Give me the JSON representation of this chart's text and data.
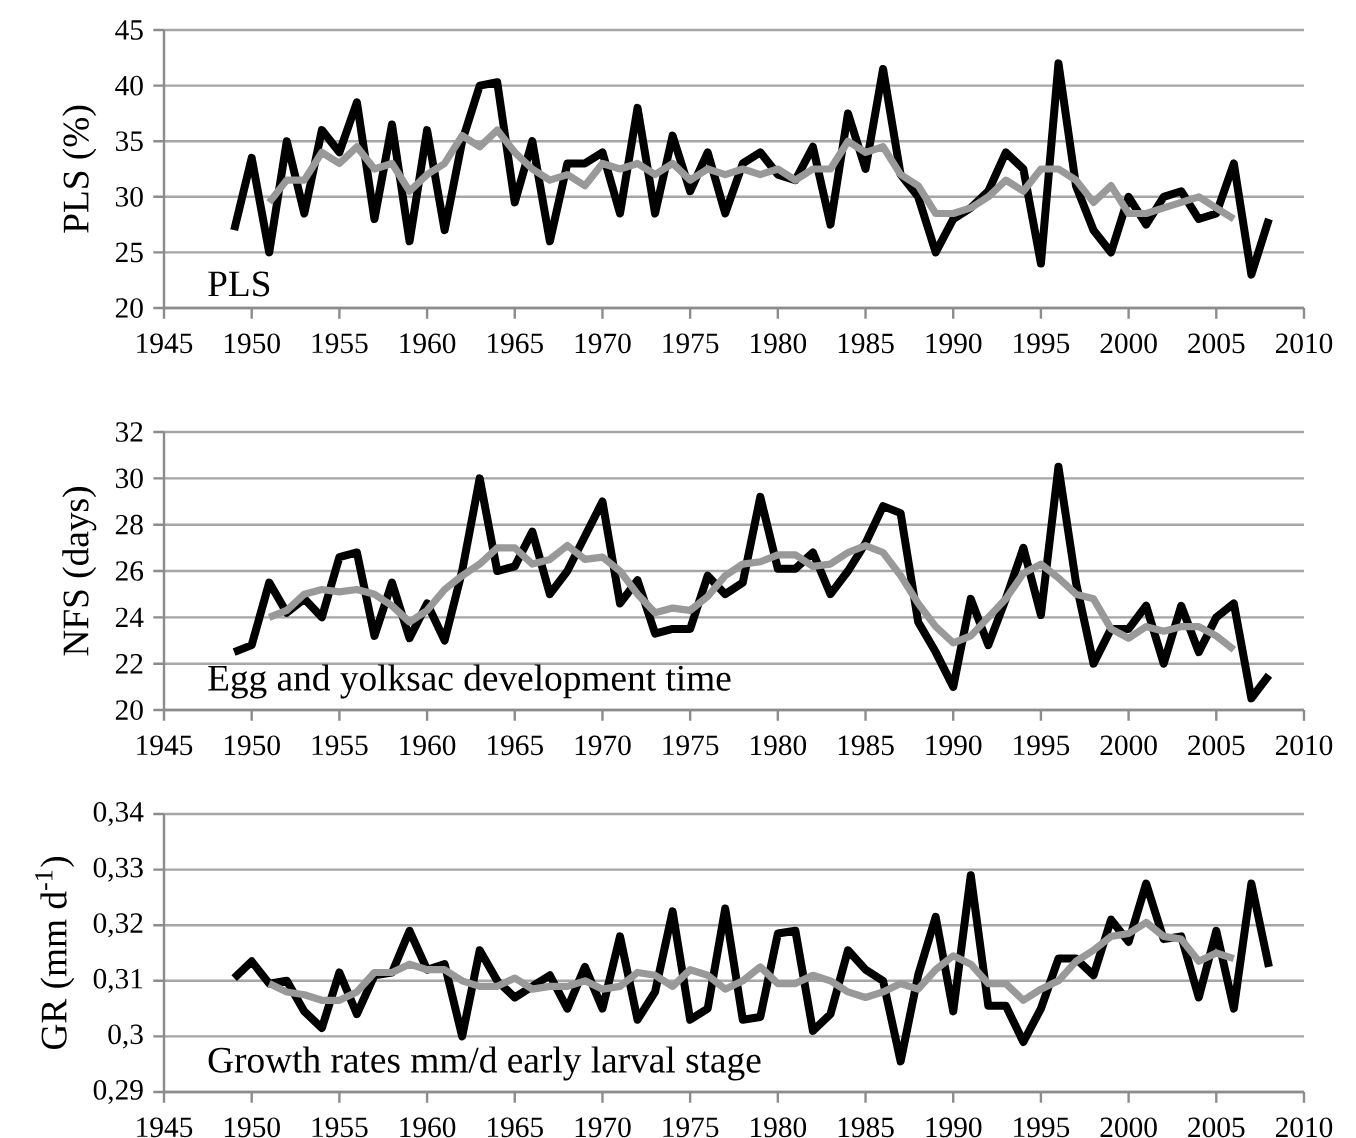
{
  "chart_data": [
    {
      "type": "line",
      "ylabel": "PLS (%)",
      "annotations": [
        "PLS"
      ],
      "grid": "y",
      "line_style": "solid",
      "xlim": [
        1945,
        2010
      ],
      "xticks": [
        1945,
        1950,
        1955,
        1960,
        1965,
        1970,
        1975,
        1980,
        1985,
        1990,
        1995,
        2000,
        2005,
        2010
      ],
      "ylim": [
        20,
        45
      ],
      "yticks": [
        20,
        25,
        30,
        35,
        40,
        45
      ],
      "series": [
        {
          "color": "#000000",
          "x": [
            1949,
            1950,
            1951,
            1952,
            1953,
            1954,
            1955,
            1956,
            1957,
            1958,
            1959,
            1960,
            1961,
            1962,
            1963,
            1964,
            1965,
            1966,
            1967,
            1968,
            1969,
            1970,
            1971,
            1972,
            1973,
            1974,
            1975,
            1976,
            1977,
            1978,
            1979,
            1980,
            1981,
            1982,
            1983,
            1984,
            1985,
            1986,
            1987,
            1988,
            1989,
            1990,
            1991,
            1992,
            1993,
            1994,
            1995,
            1996,
            1997,
            1998,
            1999,
            2000,
            2001,
            2002,
            2003,
            2004,
            2005,
            2006,
            2007,
            2008
          ],
          "values": [
            27,
            33.5,
            25,
            35,
            28.5,
            36,
            34,
            38.5,
            28,
            36.5,
            26,
            36,
            27,
            35,
            40,
            40.3,
            29.5,
            35,
            26,
            33,
            33,
            34,
            28.5,
            38,
            28.5,
            35.5,
            30.5,
            34,
            28.5,
            33,
            34,
            32,
            31.5,
            34.5,
            27.5,
            37.5,
            32.5,
            41.5,
            32,
            30,
            25,
            28,
            29,
            30.5,
            34,
            32.5,
            24,
            42,
            31,
            27,
            25,
            30,
            27.5,
            30,
            30.5,
            28,
            28.5,
            33,
            23,
            28
          ]
        },
        {
          "color": "#999999",
          "x": [
            1951,
            1952,
            1953,
            1954,
            1955,
            1956,
            1957,
            1958,
            1959,
            1960,
            1961,
            1962,
            1963,
            1964,
            1965,
            1966,
            1967,
            1968,
            1969,
            1970,
            1971,
            1972,
            1973,
            1974,
            1975,
            1976,
            1977,
            1978,
            1979,
            1980,
            1981,
            1982,
            1983,
            1984,
            1985,
            1986,
            1987,
            1988,
            1989,
            1990,
            1991,
            1992,
            1993,
            1994,
            1995,
            1996,
            1997,
            1998,
            1999,
            2000,
            2001,
            2002,
            2003,
            2004,
            2005,
            2006
          ],
          "values": [
            29.5,
            31.5,
            31.5,
            34,
            33,
            34.5,
            32.5,
            33,
            30.5,
            32,
            33,
            35.5,
            34.5,
            36,
            34,
            32.5,
            31.5,
            32,
            31,
            33,
            32.5,
            33,
            32,
            33,
            31.5,
            32.5,
            32,
            32.5,
            32,
            32.5,
            31.5,
            32.5,
            32.5,
            35,
            34,
            34.5,
            32,
            31,
            28.5,
            28.5,
            29,
            30,
            31.5,
            30.5,
            32.5,
            32.5,
            31.5,
            29.5,
            31,
            28.5,
            28.5,
            29,
            29.5,
            30,
            29,
            28
          ]
        }
      ]
    },
    {
      "type": "line",
      "ylabel": "NFS (days)",
      "annotations": [
        "Egg and yolksac development time"
      ],
      "grid": "y",
      "line_style": "solid",
      "xlim": [
        1945,
        2010
      ],
      "xticks": [
        1945,
        1950,
        1955,
        1960,
        1965,
        1970,
        1975,
        1980,
        1985,
        1990,
        1995,
        2000,
        2005,
        2010
      ],
      "ylim": [
        20,
        32
      ],
      "yticks": [
        20,
        22,
        24,
        26,
        28,
        30,
        32
      ],
      "series": [
        {
          "color": "#000000",
          "x": [
            1949,
            1950,
            1951,
            1952,
            1953,
            1954,
            1955,
            1956,
            1957,
            1958,
            1959,
            1960,
            1961,
            1962,
            1963,
            1964,
            1965,
            1966,
            1967,
            1968,
            1969,
            1970,
            1971,
            1972,
            1973,
            1974,
            1975,
            1976,
            1977,
            1978,
            1979,
            1980,
            1981,
            1982,
            1983,
            1984,
            1985,
            1986,
            1987,
            1988,
            1989,
            1990,
            1991,
            1992,
            1993,
            1994,
            1995,
            1996,
            1997,
            1998,
            1999,
            2000,
            2001,
            2002,
            2003,
            2004,
            2005,
            2006,
            2007,
            2008
          ],
          "values": [
            22.5,
            22.8,
            25.5,
            24.2,
            24.8,
            24,
            26.6,
            26.8,
            23.2,
            25.5,
            23.1,
            24.6,
            23,
            26,
            30,
            26,
            26.2,
            27.7,
            25,
            26,
            27.5,
            29,
            24.6,
            25.6,
            23.3,
            23.5,
            23.5,
            25.8,
            25,
            25.5,
            29.2,
            26.1,
            26.1,
            26.8,
            25,
            26,
            27.2,
            28.8,
            28.5,
            23.8,
            22.5,
            21,
            24.8,
            22.8,
            24.8,
            27,
            24.1,
            30.5,
            25.5,
            22,
            23.5,
            23.5,
            24.5,
            22,
            24.5,
            22.5,
            24,
            24.6,
            20.5,
            21.5
          ]
        },
        {
          "color": "#999999",
          "x": [
            1951,
            1952,
            1953,
            1954,
            1955,
            1956,
            1957,
            1958,
            1959,
            1960,
            1961,
            1962,
            1963,
            1964,
            1965,
            1966,
            1967,
            1968,
            1969,
            1970,
            1971,
            1972,
            1973,
            1974,
            1975,
            1976,
            1977,
            1978,
            1979,
            1980,
            1981,
            1982,
            1983,
            1984,
            1985,
            1986,
            1987,
            1988,
            1989,
            1990,
            1991,
            1992,
            1993,
            1994,
            1995,
            1996,
            1997,
            1998,
            1999,
            2000,
            2001,
            2002,
            2003,
            2004,
            2005,
            2006
          ],
          "values": [
            24,
            24.3,
            25,
            25.2,
            25.1,
            25.2,
            25,
            24.5,
            23.8,
            24.3,
            25.2,
            25.8,
            26.3,
            27,
            27,
            26.3,
            26.5,
            27.1,
            26.5,
            26.6,
            26,
            25,
            24.2,
            24.4,
            24.3,
            24.9,
            25.8,
            26.3,
            26.4,
            26.7,
            26.7,
            26.2,
            26.3,
            26.8,
            27.1,
            26.8,
            25.8,
            24.6,
            23.6,
            22.9,
            23.2,
            24,
            24.8,
            25.9,
            26.3,
            25.7,
            25,
            24.8,
            23.5,
            23.1,
            23.6,
            23.4,
            23.6,
            23.6,
            23.2,
            22.6
          ]
        }
      ]
    },
    {
      "type": "line",
      "ylabel": "GR (mm d$^{-1}$)",
      "annotations": [
        "Growth rates mm/d early larval stage"
      ],
      "grid": "y",
      "line_style": "solid",
      "xlim": [
        1945,
        2010
      ],
      "xticks": [
        1945,
        1950,
        1955,
        1960,
        1965,
        1970,
        1975,
        1980,
        1985,
        1990,
        1995,
        2000,
        2005,
        2010
      ],
      "ylim": [
        0.29,
        0.34
      ],
      "yticks": [
        {
          "value": 0.29,
          "label": "0,29"
        },
        {
          "value": 0.3,
          "label": "0,3"
        },
        {
          "value": 0.31,
          "label": "0,31"
        },
        {
          "value": 0.32,
          "label": "0,32"
        },
        {
          "value": 0.33,
          "label": "0,33"
        },
        {
          "value": 0.34,
          "label": "0,34"
        }
      ],
      "series": [
        {
          "color": "#000000",
          "x": [
            1949,
            1950,
            1951,
            1952,
            1953,
            1954,
            1955,
            1956,
            1957,
            1958,
            1959,
            1960,
            1961,
            1962,
            1963,
            1964,
            1965,
            1966,
            1967,
            1968,
            1969,
            1970,
            1971,
            1972,
            1973,
            1974,
            1975,
            1976,
            1977,
            1978,
            1979,
            1980,
            1981,
            1982,
            1983,
            1984,
            1985,
            1986,
            1987,
            1988,
            1989,
            1990,
            1991,
            1992,
            1993,
            1994,
            1995,
            1996,
            1997,
            1998,
            1999,
            2000,
            2001,
            2002,
            2003,
            2004,
            2005,
            2006,
            2007,
            2008
          ],
          "values": [
            0.3105,
            0.3135,
            0.3095,
            0.31,
            0.3045,
            0.3015,
            0.3115,
            0.304,
            0.311,
            0.3115,
            0.319,
            0.312,
            0.313,
            0.3,
            0.3155,
            0.31,
            0.307,
            0.309,
            0.311,
            0.305,
            0.3125,
            0.305,
            0.318,
            0.303,
            0.308,
            0.3225,
            0.303,
            0.305,
            0.323,
            0.303,
            0.3035,
            0.3185,
            0.319,
            0.301,
            0.304,
            0.3155,
            0.312,
            0.31,
            0.2955,
            0.311,
            0.3215,
            0.3045,
            0.329,
            0.3055,
            0.3055,
            0.299,
            0.305,
            0.314,
            0.314,
            0.311,
            0.321,
            0.317,
            0.3275,
            0.3175,
            0.318,
            0.307,
            0.319,
            0.305,
            0.3275,
            0.3125
          ]
        },
        {
          "color": "#999999",
          "x": [
            1951,
            1952,
            1953,
            1954,
            1955,
            1956,
            1957,
            1958,
            1959,
            1960,
            1961,
            1962,
            1963,
            1964,
            1965,
            1966,
            1967,
            1968,
            1969,
            1970,
            1971,
            1972,
            1973,
            1974,
            1975,
            1976,
            1977,
            1978,
            1979,
            1980,
            1981,
            1982,
            1983,
            1984,
            1985,
            1986,
            1987,
            1988,
            1989,
            1990,
            1991,
            1992,
            1993,
            1994,
            1995,
            1996,
            1997,
            1998,
            1999,
            2000,
            2001,
            2002,
            2003,
            2004,
            2005,
            2006
          ],
          "values": [
            0.3095,
            0.308,
            0.3075,
            0.3065,
            0.3065,
            0.308,
            0.3115,
            0.3115,
            0.313,
            0.312,
            0.312,
            0.31,
            0.309,
            0.309,
            0.3105,
            0.3085,
            0.309,
            0.309,
            0.31,
            0.3085,
            0.309,
            0.3115,
            0.311,
            0.309,
            0.312,
            0.311,
            0.3085,
            0.31,
            0.3125,
            0.3095,
            0.3095,
            0.311,
            0.31,
            0.308,
            0.307,
            0.308,
            0.3095,
            0.3085,
            0.312,
            0.3145,
            0.313,
            0.3095,
            0.3095,
            0.3065,
            0.3085,
            0.31,
            0.3135,
            0.3155,
            0.318,
            0.3185,
            0.3205,
            0.318,
            0.3175,
            0.3135,
            0.315,
            0.314
          ]
        }
      ]
    }
  ]
}
